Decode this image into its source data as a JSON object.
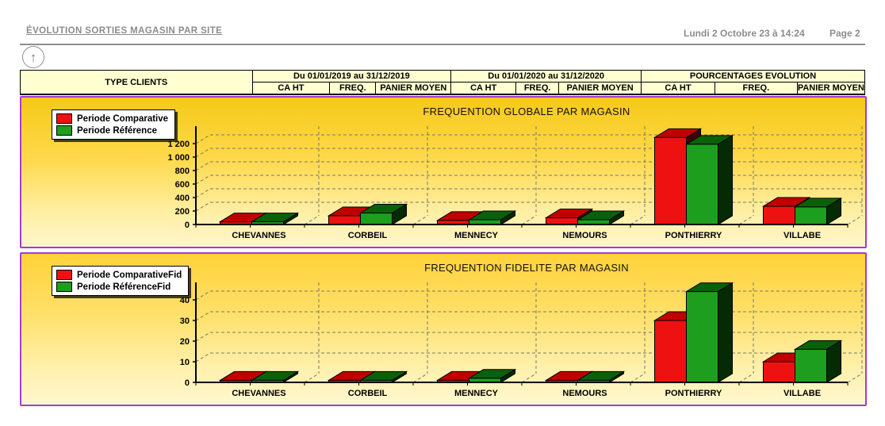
{
  "header": {
    "title": "ÉVOLUTION SORTIES MAGASIN PAR SITE",
    "datetime": "Lundi 2 Octobre 23 à 14:24",
    "page": "Page 2",
    "up_arrow_icon": "↑"
  },
  "table": {
    "row_header": "TYPE CLIENTS",
    "groups": [
      {
        "label": "Du 01/01/2019 au 31/12/2019",
        "columns": [
          "CA HT",
          "FREQ.",
          "PANIER MOYEN"
        ]
      },
      {
        "label": "Du 01/01/2020 au 31/12/2020",
        "columns": [
          "CA HT",
          "FREQ.",
          "PANIER MOYEN"
        ]
      },
      {
        "label": "POURCENTAGES EVOLUTION",
        "columns": [
          "CA HT",
          "FREQ.",
          "PANIER MOYEN"
        ]
      }
    ]
  },
  "theme": {
    "panel_border": "#a23bd6",
    "panel_gold_top": "#f5c917",
    "panel_gold_bottom": "#fff6cc",
    "series_red": "#ee1111",
    "series_green": "#1e9e1e",
    "header_text": "#8c8c8c"
  },
  "chart_data": [
    {
      "type": "bar",
      "style": "3d",
      "title": "FREQUENTION GLOBALE PAR MAGASIN",
      "categories": [
        "CHEVANNES",
        "CORBEIL",
        "MENNECY",
        "NEMOURS",
        "PONTHIERRY",
        "VILLABE"
      ],
      "series": [
        {
          "name": "Periode Comparative",
          "color": "#ee1111",
          "top": "#c00000",
          "side": "#3d0000",
          "values": [
            40,
            130,
            60,
            100,
            1290,
            270
          ]
        },
        {
          "name": "Periode Référence",
          "color": "#1e9e1e",
          "top": "#0b600b",
          "side": "#042b04",
          "values": [
            40,
            170,
            70,
            70,
            1190,
            260
          ]
        }
      ],
      "xlabel": "",
      "ylabel": "",
      "ylim": [
        0,
        1300
      ],
      "yticks": [
        0,
        200,
        400,
        600,
        800,
        1000,
        1200
      ],
      "grid": "dashed",
      "legend_position": "top-left"
    },
    {
      "type": "bar",
      "style": "3d",
      "title": "FREQUENTION FIDELITE PAR MAGASIN",
      "categories": [
        "CHEVANNES",
        "CORBEIL",
        "MENNECY",
        "NEMOURS",
        "PONTHIERRY",
        "VILLABE"
      ],
      "series": [
        {
          "name": "Periode ComparativeFid",
          "color": "#ee1111",
          "top": "#c00000",
          "side": "#3d0000",
          "values": [
            1,
            1,
            1,
            1,
            30,
            10
          ]
        },
        {
          "name": "Periode RéférenceFid",
          "color": "#1e9e1e",
          "top": "#0b600b",
          "side": "#042b04",
          "values": [
            1,
            1,
            2,
            1,
            44,
            16
          ]
        }
      ],
      "xlabel": "",
      "ylabel": "",
      "ylim": [
        0,
        45
      ],
      "yticks": [
        0,
        10,
        20,
        30,
        40
      ],
      "grid": "dashed",
      "legend_position": "top-left"
    }
  ]
}
